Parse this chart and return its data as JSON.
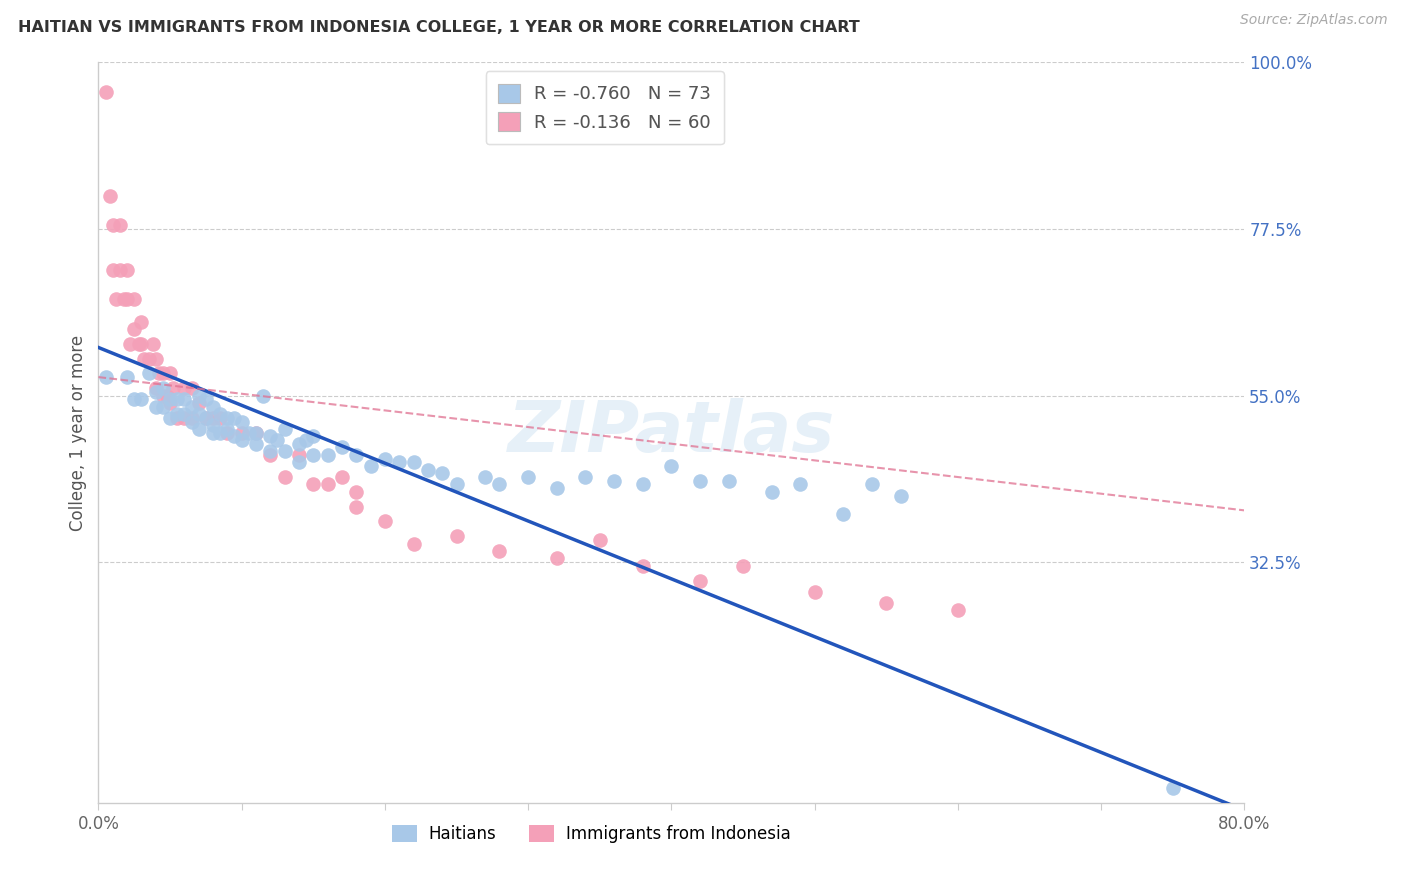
{
  "title": "HAITIAN VS IMMIGRANTS FROM INDONESIA COLLEGE, 1 YEAR OR MORE CORRELATION CHART",
  "source": "Source: ZipAtlas.com",
  "ylabel": "College, 1 year or more",
  "xlim": [
    0.0,
    0.8
  ],
  "ylim": [
    0.0,
    1.0
  ],
  "background_color": "#ffffff",
  "haitians_color": "#a8c8e8",
  "indonesia_color": "#f4a0b8",
  "haitians_line_color": "#2255bb",
  "indonesia_line_color": "#e07090",
  "legend_R_haitian": "-0.760",
  "legend_N_haitian": "73",
  "legend_R_indonesia": "-0.136",
  "legend_N_indonesia": "60",
  "grid_color": "#cccccc",
  "ytick_right_vals": [
    0.325,
    0.55,
    0.775,
    1.0
  ],
  "ytick_right_labels": [
    "32.5%",
    "55.0%",
    "77.5%",
    "100.0%"
  ],
  "haitian_x": [
    0.005,
    0.02,
    0.025,
    0.03,
    0.035,
    0.04,
    0.04,
    0.045,
    0.045,
    0.05,
    0.05,
    0.055,
    0.055,
    0.06,
    0.06,
    0.065,
    0.065,
    0.07,
    0.07,
    0.07,
    0.075,
    0.075,
    0.08,
    0.08,
    0.08,
    0.085,
    0.085,
    0.09,
    0.09,
    0.095,
    0.095,
    0.1,
    0.1,
    0.105,
    0.11,
    0.11,
    0.115,
    0.12,
    0.12,
    0.125,
    0.13,
    0.13,
    0.14,
    0.14,
    0.145,
    0.15,
    0.15,
    0.16,
    0.17,
    0.18,
    0.19,
    0.2,
    0.21,
    0.22,
    0.23,
    0.24,
    0.25,
    0.27,
    0.28,
    0.3,
    0.32,
    0.34,
    0.36,
    0.38,
    0.4,
    0.42,
    0.44,
    0.47,
    0.49,
    0.52,
    0.54,
    0.56,
    0.75
  ],
  "haitian_y": [
    0.575,
    0.575,
    0.545,
    0.545,
    0.58,
    0.535,
    0.555,
    0.56,
    0.535,
    0.545,
    0.52,
    0.545,
    0.525,
    0.545,
    0.525,
    0.535,
    0.515,
    0.55,
    0.525,
    0.505,
    0.545,
    0.52,
    0.535,
    0.51,
    0.5,
    0.525,
    0.5,
    0.52,
    0.505,
    0.52,
    0.495,
    0.515,
    0.49,
    0.5,
    0.5,
    0.485,
    0.55,
    0.495,
    0.475,
    0.49,
    0.475,
    0.505,
    0.485,
    0.46,
    0.49,
    0.47,
    0.495,
    0.47,
    0.48,
    0.47,
    0.455,
    0.465,
    0.46,
    0.46,
    0.45,
    0.445,
    0.43,
    0.44,
    0.43,
    0.44,
    0.425,
    0.44,
    0.435,
    0.43,
    0.455,
    0.435,
    0.435,
    0.42,
    0.43,
    0.39,
    0.43,
    0.415,
    0.02
  ],
  "indonesia_x": [
    0.005,
    0.008,
    0.01,
    0.01,
    0.012,
    0.015,
    0.015,
    0.018,
    0.02,
    0.02,
    0.022,
    0.025,
    0.025,
    0.028,
    0.03,
    0.03,
    0.032,
    0.035,
    0.038,
    0.04,
    0.04,
    0.042,
    0.045,
    0.045,
    0.048,
    0.05,
    0.05,
    0.052,
    0.055,
    0.06,
    0.06,
    0.065,
    0.065,
    0.07,
    0.075,
    0.08,
    0.085,
    0.09,
    0.1,
    0.11,
    0.12,
    0.13,
    0.14,
    0.15,
    0.16,
    0.17,
    0.18,
    0.18,
    0.2,
    0.22,
    0.25,
    0.28,
    0.32,
    0.35,
    0.38,
    0.42,
    0.45,
    0.5,
    0.55,
    0.6
  ],
  "indonesia_y": [
    0.96,
    0.82,
    0.78,
    0.72,
    0.68,
    0.78,
    0.72,
    0.68,
    0.72,
    0.68,
    0.62,
    0.68,
    0.64,
    0.62,
    0.65,
    0.62,
    0.6,
    0.6,
    0.62,
    0.6,
    0.56,
    0.58,
    0.58,
    0.55,
    0.55,
    0.58,
    0.54,
    0.56,
    0.52,
    0.56,
    0.52,
    0.56,
    0.52,
    0.54,
    0.52,
    0.52,
    0.52,
    0.5,
    0.5,
    0.5,
    0.47,
    0.44,
    0.47,
    0.43,
    0.43,
    0.44,
    0.42,
    0.4,
    0.38,
    0.35,
    0.36,
    0.34,
    0.33,
    0.355,
    0.32,
    0.3,
    0.32,
    0.285,
    0.27,
    0.26
  ],
  "haitian_line_x0": 0.0,
  "haitian_line_y0": 0.615,
  "haitian_line_x1": 0.8,
  "haitian_line_y1": -0.01,
  "indonesia_line_x0": 0.0,
  "indonesia_line_y0": 0.575,
  "indonesia_line_x1": 0.8,
  "indonesia_line_y1": 0.395
}
